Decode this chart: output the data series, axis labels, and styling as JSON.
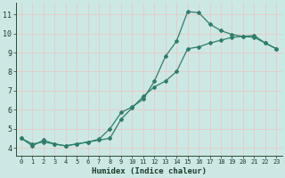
{
  "title": "",
  "xlabel": "Humidex (Indice chaleur)",
  "xlim": [
    -0.5,
    23.5
  ],
  "ylim": [
    3.6,
    11.6
  ],
  "xticks": [
    0,
    1,
    2,
    3,
    4,
    5,
    6,
    7,
    8,
    9,
    10,
    11,
    12,
    13,
    14,
    15,
    16,
    17,
    18,
    19,
    20,
    21,
    22,
    23
  ],
  "yticks": [
    4,
    5,
    6,
    7,
    8,
    9,
    10,
    11
  ],
  "bg_color": "#cce8e4",
  "grid_color": "#e8c8c8",
  "line_color": "#2e7d6b",
  "line1_x": [
    0,
    1,
    2,
    3,
    4,
    5,
    6,
    7,
    8,
    9,
    10,
    11,
    12,
    13,
    14,
    15,
    16,
    17,
    18,
    19,
    20,
    21,
    22,
    23
  ],
  "line1_y": [
    4.5,
    4.1,
    4.4,
    4.2,
    4.1,
    4.2,
    4.3,
    4.45,
    5.0,
    5.85,
    6.15,
    6.55,
    7.5,
    8.8,
    9.6,
    11.15,
    11.1,
    10.5,
    10.15,
    9.95,
    9.85,
    9.8,
    9.5,
    9.2
  ],
  "line2_x": [
    0,
    1,
    2,
    3,
    4,
    5,
    6,
    7,
    8,
    9,
    10,
    11,
    12,
    13,
    14,
    15,
    16,
    17,
    18,
    19,
    20,
    21,
    22,
    23
  ],
  "line2_y": [
    4.5,
    4.2,
    4.3,
    4.2,
    4.1,
    4.2,
    4.3,
    4.4,
    4.5,
    5.5,
    6.1,
    6.7,
    7.2,
    7.5,
    8.0,
    9.2,
    9.3,
    9.5,
    9.65,
    9.8,
    9.85,
    9.9,
    9.5,
    9.2
  ]
}
